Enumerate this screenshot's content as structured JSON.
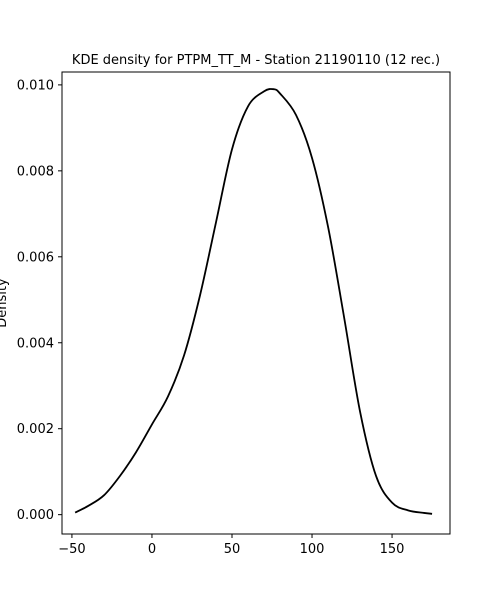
{
  "chart_data": {
    "type": "line",
    "title": "KDE density for PTPM_TT_M - Station 21190110 (12 rec.)",
    "xlabel": "",
    "ylabel": "Density",
    "xlim": [
      -56.2,
      186.2
    ],
    "ylim": [
      -0.00045,
      0.0103
    ],
    "x_ticks": [
      -50,
      0,
      50,
      100,
      150
    ],
    "x_tick_labels": [
      "−50",
      "0",
      "50",
      "100",
      "150"
    ],
    "y_ticks": [
      0.0,
      0.002,
      0.004,
      0.006,
      0.008,
      0.01
    ],
    "y_tick_labels": [
      "0.000",
      "0.002",
      "0.004",
      "0.006",
      "0.008",
      "0.010"
    ],
    "grid": false,
    "line_color": "#000000",
    "series": [
      {
        "x": [
          -48,
          -40,
          -30,
          -20,
          -10,
          0,
          10,
          20,
          30,
          40,
          50,
          60,
          70,
          76,
          80,
          90,
          100,
          110,
          120,
          130,
          140,
          150,
          160,
          170,
          175
        ],
        "y": [
          5e-05,
          0.0002,
          0.00045,
          0.0009,
          0.00145,
          0.0021,
          0.00275,
          0.0037,
          0.0051,
          0.0068,
          0.0085,
          0.0095,
          0.00985,
          0.0099,
          0.0098,
          0.0093,
          0.0083,
          0.0067,
          0.0046,
          0.0024,
          0.0009,
          0.00028,
          0.0001,
          4e-05,
          2e-05
        ]
      }
    ]
  }
}
